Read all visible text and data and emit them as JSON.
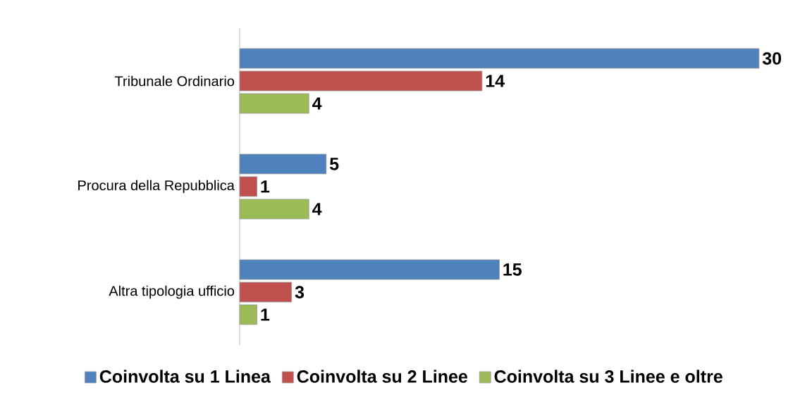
{
  "chart_data": {
    "type": "bar",
    "orientation": "horizontal",
    "categories": [
      "Tribunale Ordinario",
      "Procura della Repubblica",
      "Altra tipologia ufficio"
    ],
    "series": [
      {
        "name": "Coinvolta su 1 Linea",
        "color": "#4f81bd",
        "values": [
          30,
          5,
          15
        ]
      },
      {
        "name": "Coinvolta su 2 Linee",
        "color": "#c0504d",
        "values": [
          14,
          1,
          3
        ]
      },
      {
        "name": "Coinvolta su 3 Linee e oltre",
        "color": "#9bbb59",
        "values": [
          4,
          4,
          1
        ]
      }
    ],
    "data_labels": true,
    "legend": "bottom"
  }
}
